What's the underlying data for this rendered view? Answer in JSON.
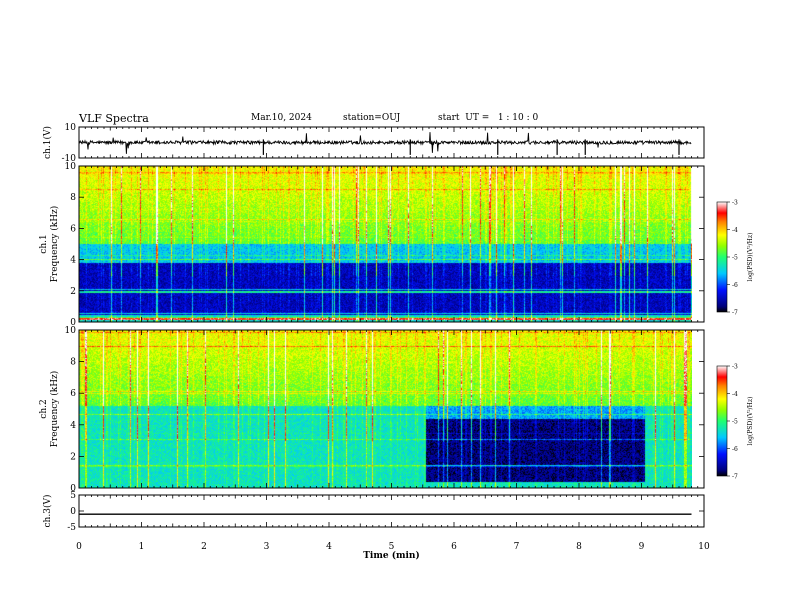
{
  "header": {
    "title": "VLF Spectra",
    "date": "Mar.10, 2024",
    "station": "station=OUJ",
    "start": "start  UT =   1 : 10 : 0"
  },
  "chart_data": [
    {
      "type": "line",
      "panel": "waveform-ch1",
      "ylabel": "ch.1(V)",
      "ylim": [
        -10,
        10
      ],
      "yticks": [
        "10",
        "-10"
      ],
      "xlim": [
        0,
        10
      ],
      "x": [
        0,
        1,
        2,
        3,
        4,
        5,
        6,
        7,
        7.65,
        8,
        9,
        9.8
      ],
      "y": [
        0,
        0,
        0,
        0,
        0,
        0,
        0,
        0,
        0,
        0,
        0,
        0
      ],
      "note_visible_only": ""
    },
    {
      "type": "heatmap",
      "panel": "spectrogram-ch1",
      "ylabel_line1": "ch.1",
      "ylabel_line2": "Frequency  (kHz)",
      "ylim": [
        0,
        10
      ],
      "yticks": [
        "0",
        "2",
        "4",
        "6",
        "8",
        "10"
      ],
      "xlim": [
        0,
        10
      ],
      "data_xmax": 9.8,
      "colorbar": {
        "label": "log(PSD)(V²/Hz)",
        "range": [
          -7,
          -3
        ],
        "ticks": [
          "-3",
          "-4",
          "-5",
          "-6",
          "-7"
        ]
      }
    },
    {
      "type": "heatmap",
      "panel": "spectrogram-ch2",
      "ylabel_line1": "ch.2",
      "ylabel_line2": "Frequency  (kHz)",
      "ylim": [
        0,
        10
      ],
      "yticks": [
        "0",
        "2",
        "4",
        "6",
        "8",
        "10"
      ],
      "xlim": [
        0,
        10
      ],
      "data_xmax": 9.8,
      "quiet_interval_x": [
        5.55,
        9.05
      ],
      "colorbar": {
        "label": "log(PSD)(V²/Hz)",
        "range": [
          -7,
          -3
        ],
        "ticks": [
          "-3",
          "-4",
          "-5",
          "-6",
          "-7"
        ]
      }
    },
    {
      "type": "line",
      "panel": "waveform-ch3",
      "ylabel": "ch.3(V)",
      "ylim": [
        -5,
        5
      ],
      "yticks": [
        "5",
        "0",
        "-5"
      ],
      "xlim": [
        0,
        10
      ],
      "x": [
        0,
        9.8
      ],
      "y": [
        -1.0,
        -1.0
      ]
    }
  ],
  "xaxis": {
    "label": "Time  (min)",
    "ticks": [
      "0",
      "1",
      "2",
      "3",
      "4",
      "5",
      "6",
      "7",
      "8",
      "9",
      "10"
    ]
  }
}
